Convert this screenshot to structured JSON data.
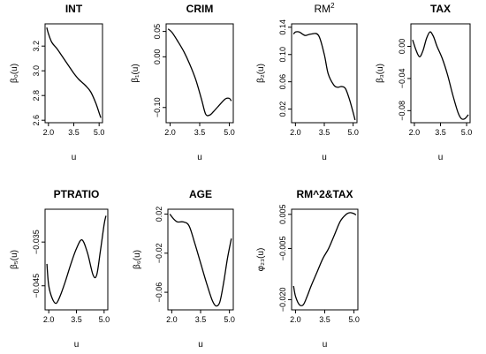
{
  "chart_data": [
    {
      "type": "line",
      "title": "INT",
      "title_style": "bold",
      "xlabel": "u",
      "ylabel": "β₀(u)",
      "xlim": [
        1.8,
        5.2
      ],
      "ylim": [
        2.58,
        3.38
      ],
      "x_ticks": [
        2.0,
        3.5,
        5.0
      ],
      "x_tick_labels": [
        "2.0",
        "3.5",
        "5.0"
      ],
      "y_ticks": [
        2.6,
        2.8,
        3.0,
        3.2
      ],
      "y_tick_labels": [
        "2.6",
        "2.8",
        "3.0",
        "3.2"
      ],
      "x": [
        1.9,
        2.0,
        2.2,
        2.5,
        2.8,
        3.2,
        3.5,
        3.8,
        4.2,
        4.5,
        4.8,
        5.0,
        5.1
      ],
      "y": [
        3.35,
        3.3,
        3.23,
        3.18,
        3.12,
        3.04,
        2.98,
        2.93,
        2.88,
        2.83,
        2.74,
        2.66,
        2.62
      ]
    },
    {
      "type": "line",
      "title": "CRIM",
      "title_style": "bold",
      "xlabel": "u",
      "ylabel": "β₁(u)",
      "xlim": [
        1.8,
        5.2
      ],
      "ylim": [
        -0.13,
        0.065
      ],
      "x_ticks": [
        2.0,
        3.5,
        5.0
      ],
      "x_tick_labels": [
        "2.0",
        "3.5",
        "5.0"
      ],
      "y_ticks": [
        -0.1,
        0.0,
        0.05
      ],
      "y_tick_labels": [
        "−0.10",
        "0.00",
        "0.05"
      ],
      "x": [
        1.9,
        2.1,
        2.4,
        2.7,
        3.0,
        3.3,
        3.6,
        3.8,
        4.0,
        4.2,
        4.5,
        4.8,
        5.0,
        5.1
      ],
      "y": [
        0.055,
        0.048,
        0.03,
        0.01,
        -0.015,
        -0.045,
        -0.085,
        -0.113,
        -0.115,
        -0.108,
        -0.095,
        -0.083,
        -0.082,
        -0.087
      ]
    },
    {
      "type": "line",
      "title": "RM",
      "title_superscript": "2",
      "title_style": "normal",
      "xlabel": "u",
      "ylabel": "β₂(u)",
      "xlim": [
        1.8,
        5.2
      ],
      "ylim": [
        0.0,
        0.145
      ],
      "x_ticks": [
        2.0,
        3.5,
        5.0
      ],
      "x_tick_labels": [
        "2.0",
        "3.5",
        "5.0"
      ],
      "y_ticks": [
        0.02,
        0.06,
        0.1,
        0.14
      ],
      "y_tick_labels": [
        "0.02",
        "0.06",
        "0.10",
        "0.14"
      ],
      "x": [
        1.9,
        2.0,
        2.2,
        2.5,
        2.8,
        3.2,
        3.5,
        3.7,
        4.0,
        4.2,
        4.4,
        4.6,
        4.8,
        5.0,
        5.1
      ],
      "y": [
        0.13,
        0.133,
        0.133,
        0.128,
        0.13,
        0.128,
        0.1,
        0.072,
        0.055,
        0.052,
        0.053,
        0.05,
        0.035,
        0.015,
        0.004
      ]
    },
    {
      "type": "line",
      "title": "TAX",
      "title_style": "bold",
      "xlabel": "u",
      "ylabel": "β₃(u)",
      "xlim": [
        1.8,
        5.2
      ],
      "ylim": [
        -0.095,
        0.028
      ],
      "x_ticks": [
        2.0,
        3.5,
        5.0
      ],
      "x_tick_labels": [
        "2.0",
        "3.5",
        "5.0"
      ],
      "y_ticks": [
        -0.08,
        -0.04,
        0.0
      ],
      "y_tick_labels": [
        "−0.08",
        "−0.04",
        "0.00"
      ],
      "x": [
        1.9,
        2.1,
        2.3,
        2.5,
        2.7,
        2.9,
        3.1,
        3.3,
        3.6,
        3.9,
        4.2,
        4.5,
        4.7,
        4.9,
        5.1
      ],
      "y": [
        0.008,
        -0.005,
        -0.013,
        -0.005,
        0.01,
        0.018,
        0.012,
        0.0,
        -0.015,
        -0.035,
        -0.06,
        -0.082,
        -0.09,
        -0.09,
        -0.085
      ]
    },
    {
      "type": "line",
      "title": "PTRATIO",
      "title_style": "bold",
      "xlabel": "u",
      "ylabel": "β₅(u)",
      "xlim": [
        1.8,
        5.2
      ],
      "ylim": [
        -0.0505,
        -0.0275
      ],
      "x_ticks": [
        2.0,
        3.5,
        5.0
      ],
      "x_tick_labels": [
        "2.0",
        "3.5",
        "5.0"
      ],
      "y_ticks": [
        -0.045,
        -0.035
      ],
      "y_tick_labels": [
        "−0.045",
        "−0.035"
      ],
      "x": [
        1.9,
        2.0,
        2.2,
        2.4,
        2.6,
        2.9,
        3.2,
        3.5,
        3.8,
        4.1,
        4.4,
        4.6,
        4.8,
        5.0,
        5.1
      ],
      "y": [
        -0.04,
        -0.045,
        -0.048,
        -0.049,
        -0.0475,
        -0.044,
        -0.04,
        -0.0365,
        -0.0345,
        -0.0375,
        -0.0425,
        -0.0425,
        -0.037,
        -0.031,
        -0.029
      ]
    },
    {
      "type": "line",
      "title": "AGE",
      "title_style": "bold",
      "xlabel": "u",
      "ylabel": "β₆(u)",
      "xlim": [
        1.8,
        5.2
      ],
      "ylim": [
        -0.078,
        0.025
      ],
      "x_ticks": [
        2.0,
        3.5,
        5.0
      ],
      "x_tick_labels": [
        "2.0",
        "3.5",
        "5.0"
      ],
      "y_ticks": [
        -0.06,
        -0.02,
        0.02
      ],
      "y_tick_labels": [
        "−0.06",
        "−0.02",
        "0.02"
      ],
      "x": [
        1.9,
        2.1,
        2.3,
        2.6,
        2.9,
        3.2,
        3.5,
        3.8,
        4.1,
        4.3,
        4.5,
        4.7,
        4.9,
        5.1
      ],
      "y": [
        0.02,
        0.015,
        0.012,
        0.012,
        0.008,
        -0.01,
        -0.03,
        -0.05,
        -0.068,
        -0.074,
        -0.07,
        -0.05,
        -0.025,
        -0.005
      ]
    },
    {
      "type": "line",
      "title": "RM^2&TAX",
      "title_style": "bold",
      "xlabel": "u",
      "ylabel": "φ₂₃(u)",
      "xlim": [
        1.8,
        5.2
      ],
      "ylim": [
        -0.023,
        0.0065
      ],
      "x_ticks": [
        2.0,
        3.5,
        5.0
      ],
      "x_tick_labels": [
        "2.0",
        "3.5",
        "5.0"
      ],
      "y_ticks": [
        -0.02,
        -0.005,
        0.005
      ],
      "y_tick_labels": [
        "−0.020",
        "−0.005",
        "0.005"
      ],
      "x": [
        1.9,
        2.0,
        2.2,
        2.4,
        2.6,
        2.8,
        3.1,
        3.4,
        3.7,
        4.0,
        4.3,
        4.6,
        4.8,
        5.0,
        5.1
      ],
      "y": [
        -0.016,
        -0.019,
        -0.0215,
        -0.0215,
        -0.019,
        -0.016,
        -0.012,
        -0.008,
        -0.005,
        -0.001,
        0.003,
        0.005,
        0.0055,
        0.0052,
        0.0048
      ]
    }
  ]
}
